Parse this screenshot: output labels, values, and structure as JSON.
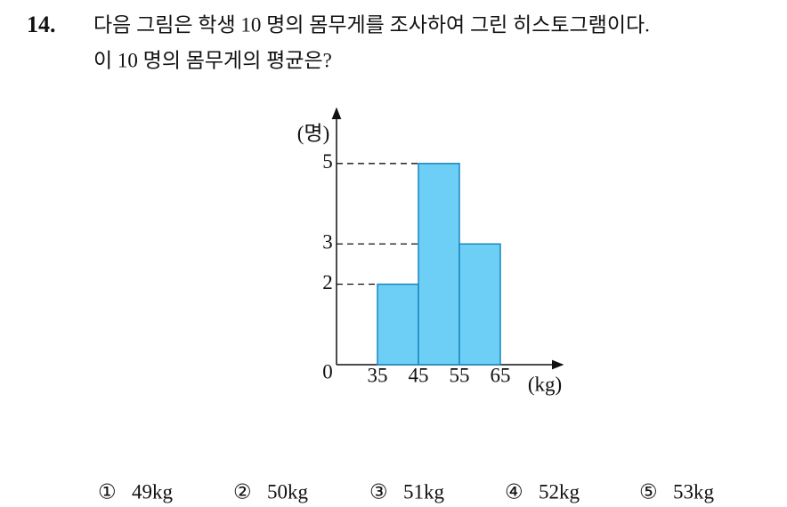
{
  "question": {
    "number": "14.",
    "lines": [
      "다음 그림은 학생 10 명의 몸무게를 조사하여 그린 히스토그램이다.",
      "이 10 명의 몸무게의 평균은?"
    ]
  },
  "chart_data": {
    "type": "histogram",
    "ylabel": "(명)",
    "xlabel": "(kg)",
    "bins": [
      35,
      45,
      55,
      65
    ],
    "values": [
      2,
      5,
      3
    ],
    "color": "#6dcff6",
    "xlim": [
      25,
      80
    ],
    "ylim": [
      0,
      6.3
    ],
    "xticks": [
      35,
      45,
      55,
      65
    ],
    "yticks": [
      0,
      2,
      3,
      5
    ]
  },
  "choices": [
    {
      "marker": "①",
      "text": "49kg"
    },
    {
      "marker": "②",
      "text": "50kg"
    },
    {
      "marker": "③",
      "text": "51kg"
    },
    {
      "marker": "④",
      "text": "52kg"
    },
    {
      "marker": "⑤",
      "text": "53kg"
    }
  ]
}
